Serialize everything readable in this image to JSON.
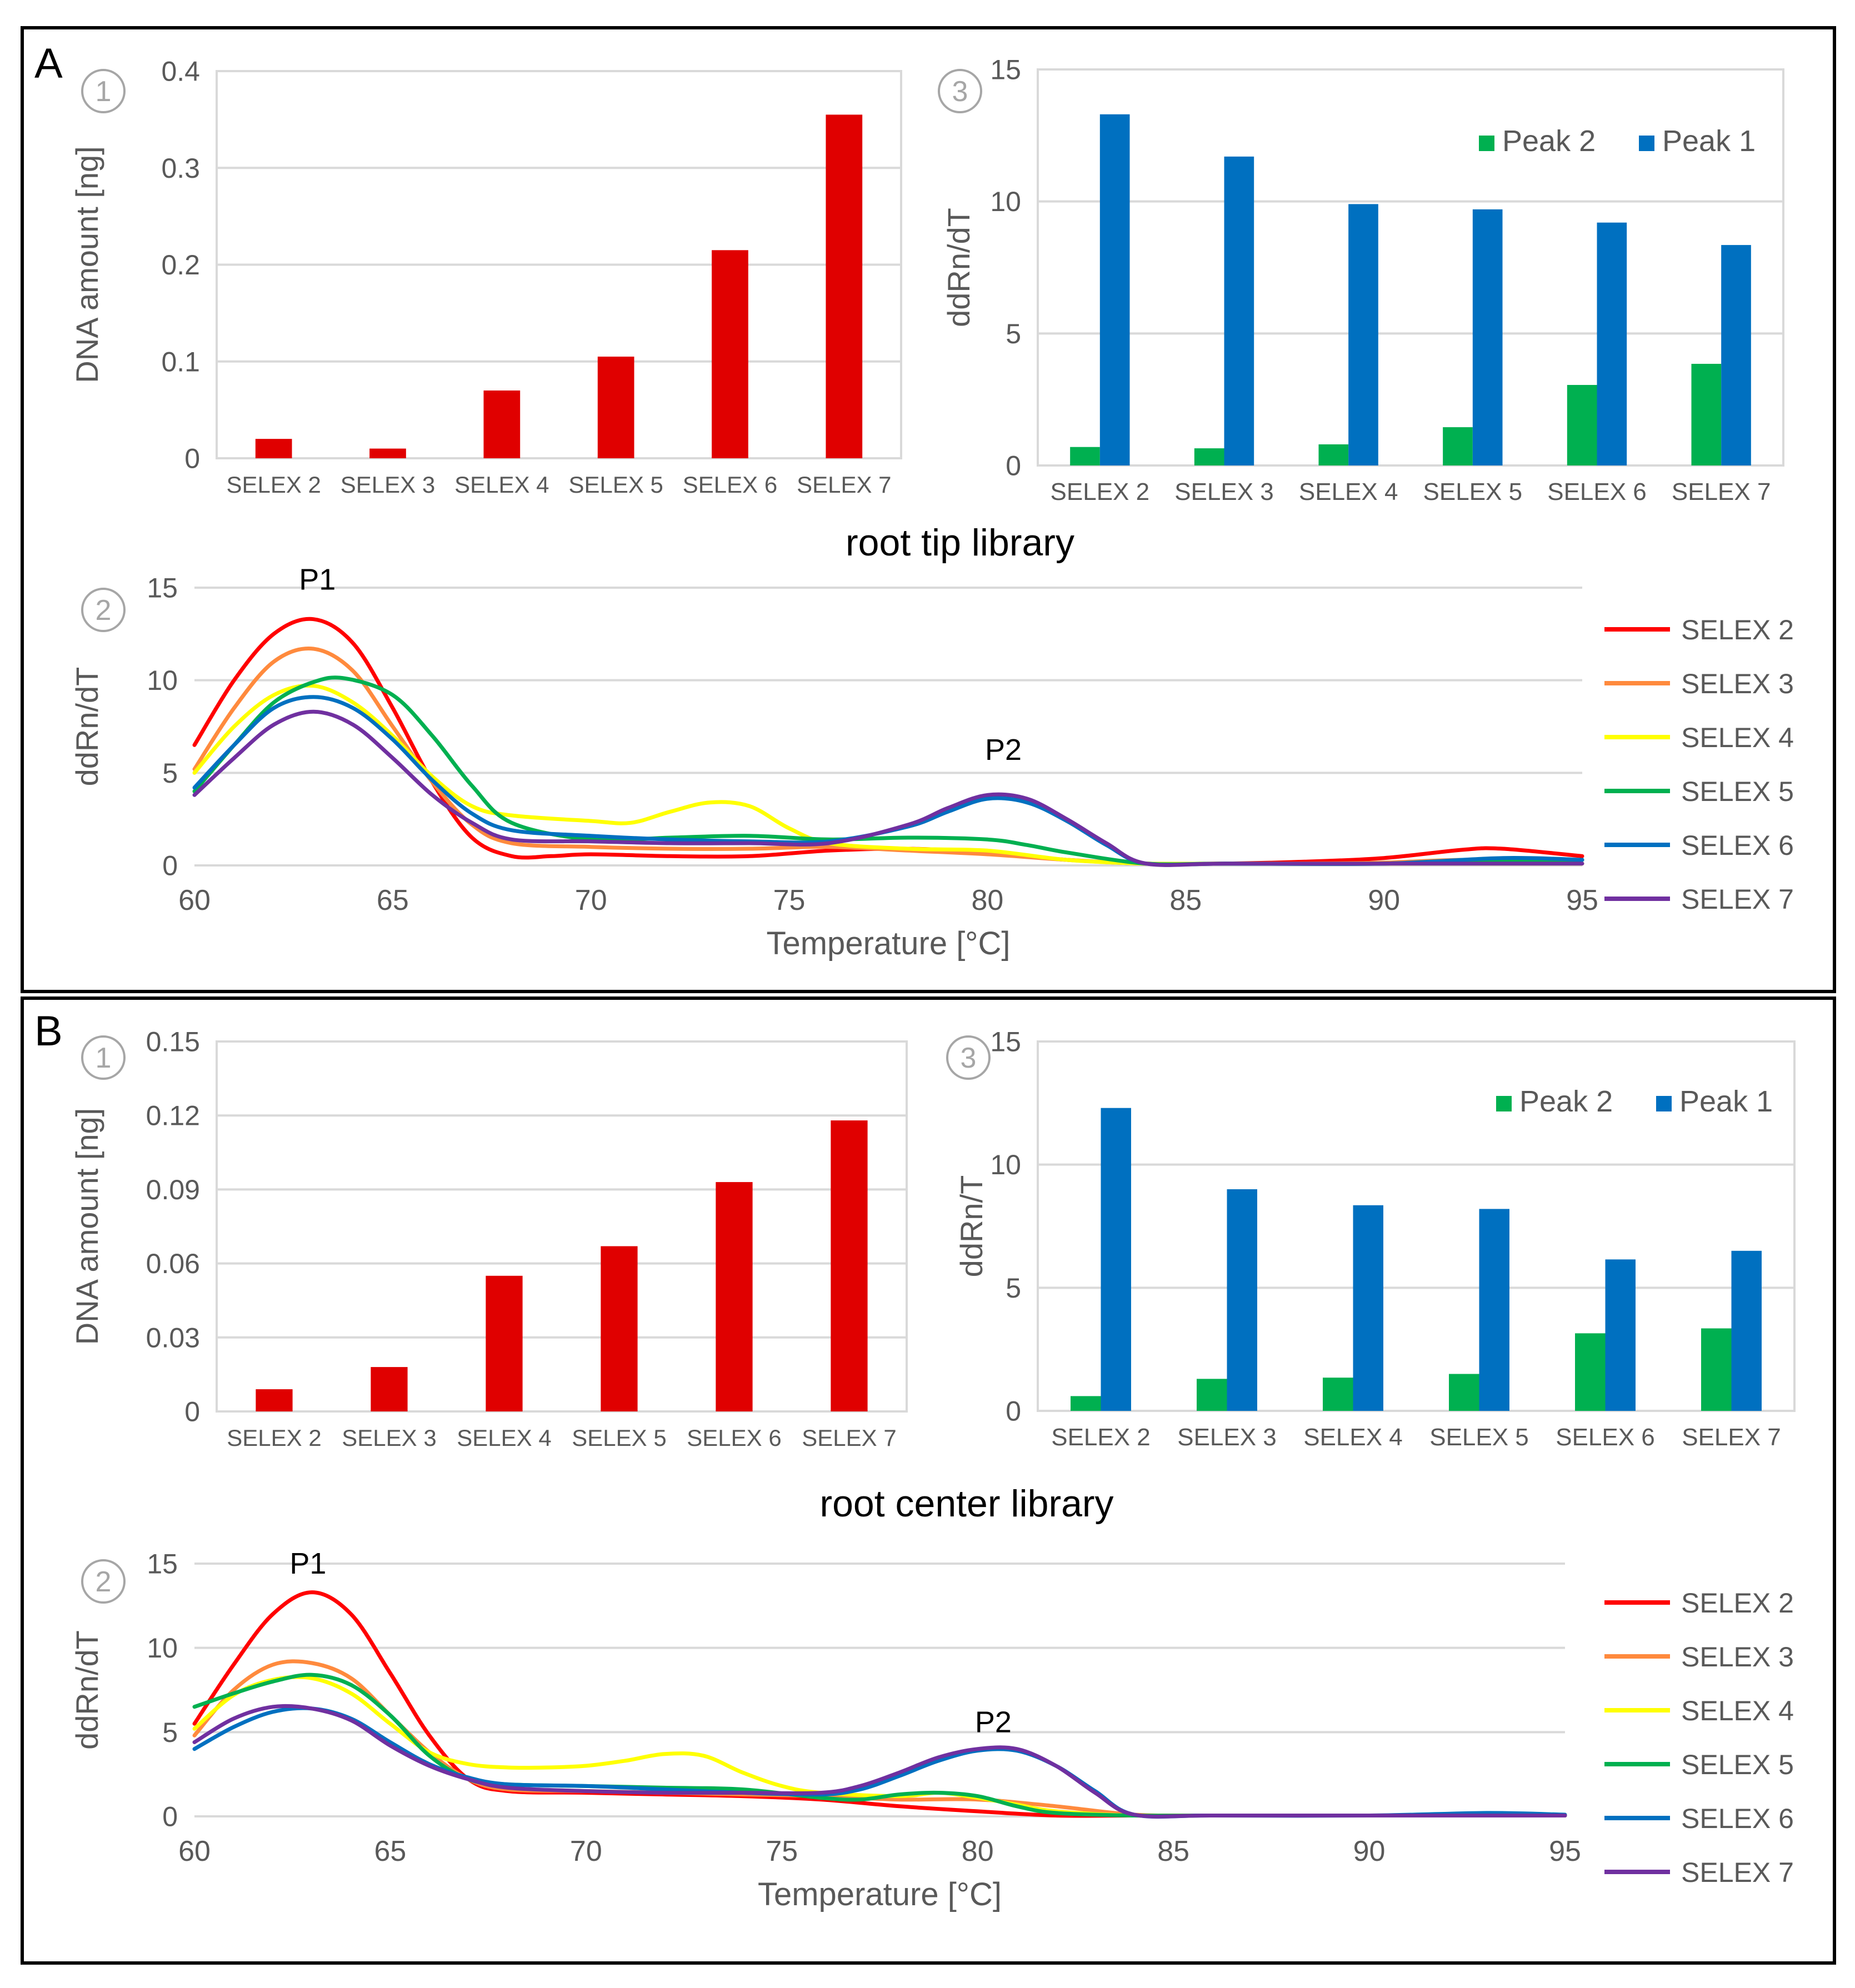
{
  "colors": {
    "red_bar": "#e00000",
    "peak2": "#00b050",
    "peak1": "#0070c0",
    "axis_text": "#595959",
    "grid": "#d9d9d9",
    "frame": "#000000",
    "series": [
      "#ff0000",
      "#ff8a3d",
      "#ffff00",
      "#00b050",
      "#0070c0",
      "#7030a0"
    ]
  },
  "panels": [
    {
      "panel_label": "A",
      "library_title": "root tip library",
      "circle_1": "1",
      "circle_2": "2",
      "circle_3": "3",
      "p1_label": "P1",
      "p2_label": "P2"
    },
    {
      "panel_label": "B",
      "library_title": "root center library",
      "circle_1": "1",
      "circle_2": "2",
      "circle_3": "3",
      "p1_label": "P1",
      "p2_label": "P2"
    }
  ],
  "chart_data": [
    {
      "id": "A1",
      "type": "bar",
      "title": "",
      "ylabel": "DNA amount [ng]",
      "xlabel": "",
      "categories": [
        "SELEX 2",
        "SELEX 3",
        "SELEX 4",
        "SELEX 5",
        "SELEX 6",
        "SELEX 7"
      ],
      "values": [
        0.02,
        0.01,
        0.07,
        0.105,
        0.215,
        0.355
      ],
      "ylim": [
        0,
        0.4
      ],
      "yticks": [
        "0",
        "0.1",
        "0.2",
        "0.3",
        "0.4"
      ],
      "grid": true
    },
    {
      "id": "A3",
      "type": "bar",
      "title": "",
      "ylabel": "ddRn/dT",
      "xlabel": "",
      "categories": [
        "SELEX 2",
        "SELEX 3",
        "SELEX 4",
        "SELEX 5",
        "SELEX 6",
        "SELEX 7"
      ],
      "series": [
        {
          "name": "Peak 2",
          "values": [
            0.7,
            0.65,
            0.8,
            1.45,
            3.05,
            3.85
          ]
        },
        {
          "name": "Peak 1",
          "values": [
            13.3,
            11.7,
            9.9,
            9.7,
            9.2,
            8.35
          ]
        }
      ],
      "ylim": [
        0,
        15
      ],
      "yticks": [
        "0",
        "5",
        "10",
        "15"
      ],
      "legend": "top-right",
      "grid": true
    },
    {
      "id": "A2",
      "type": "line",
      "title": "",
      "ylabel": "ddRn/dT",
      "xlabel": "Temperature [°C]",
      "xlim": [
        60,
        95
      ],
      "ylim": [
        0,
        15
      ],
      "xticks": [
        "60",
        "65",
        "70",
        "75",
        "80",
        "85",
        "90",
        "95"
      ],
      "yticks": [
        "0",
        "5",
        "10",
        "15"
      ],
      "legend": "right",
      "grid": true,
      "series": [
        {
          "name": "SELEX 2",
          "x": [
            60,
            61,
            62,
            63,
            64,
            65,
            66,
            67,
            68,
            69,
            70,
            72,
            74,
            76,
            78,
            80,
            82,
            84,
            86,
            88,
            90,
            92,
            93,
            95
          ],
          "y": [
            6.5,
            10,
            12.5,
            13.3,
            12,
            8.5,
            4.5,
            1.5,
            0.5,
            0.5,
            0.6,
            0.5,
            0.5,
            0.8,
            0.9,
            0.7,
            0.3,
            0.1,
            0.1,
            0.2,
            0.4,
            0.85,
            0.9,
            0.5
          ]
        },
        {
          "name": "SELEX 3",
          "x": [
            60,
            61,
            62,
            63,
            64,
            65,
            66,
            67,
            68,
            70,
            72,
            74,
            76,
            78,
            80,
            82,
            84,
            86,
            88,
            90,
            92,
            95
          ],
          "y": [
            5.2,
            8.5,
            11,
            11.7,
            10.5,
            7.5,
            4.5,
            2.2,
            1.2,
            1.0,
            0.9,
            0.9,
            1.0,
            0.8,
            0.6,
            0.3,
            0.1,
            0.1,
            0.1,
            0.15,
            0.3,
            0.3
          ]
        },
        {
          "name": "SELEX 4",
          "x": [
            60,
            61,
            62,
            63,
            64,
            65,
            66,
            67,
            68,
            70,
            71,
            72,
            73,
            74,
            75,
            76,
            78,
            80,
            82,
            84,
            86,
            90,
            95
          ],
          "y": [
            5,
            7.5,
            9.2,
            9.7,
            8.8,
            7,
            4.8,
            3.2,
            2.7,
            2.4,
            2.3,
            2.9,
            3.4,
            3.2,
            2.0,
            1.2,
            0.9,
            0.8,
            0.3,
            0.1,
            0.1,
            0.1,
            0.1
          ]
        },
        {
          "name": "SELEX 5",
          "x": [
            60,
            61,
            62,
            63,
            63.8,
            65,
            66,
            67,
            68,
            70,
            72,
            74,
            76,
            78,
            80,
            81,
            82,
            84,
            86,
            90,
            95
          ],
          "y": [
            4,
            6.5,
            8.8,
            9.9,
            10.1,
            9.2,
            7,
            4.3,
            2.3,
            1.4,
            1.5,
            1.6,
            1.4,
            1.5,
            1.4,
            1.1,
            0.7,
            0.1,
            0.1,
            0.1,
            0.3
          ]
        },
        {
          "name": "SELEX 6",
          "x": [
            60,
            61,
            62,
            63,
            64,
            65,
            66,
            67,
            68,
            70,
            72,
            74,
            76,
            78,
            79,
            80,
            81,
            82,
            83,
            84,
            86,
            90,
            93,
            95
          ],
          "y": [
            4.2,
            6.5,
            8.5,
            9.1,
            8.5,
            6.8,
            4.6,
            2.8,
            1.9,
            1.6,
            1.4,
            1.3,
            1.3,
            2.1,
            2.9,
            3.6,
            3.4,
            2.4,
            1.1,
            0.1,
            0.1,
            0.1,
            0.4,
            0.3
          ]
        },
        {
          "name": "SELEX 7",
          "x": [
            60,
            61,
            62,
            63,
            64,
            65,
            66,
            67,
            68,
            70,
            72,
            74,
            76,
            78,
            79,
            80,
            81,
            82,
            83,
            84,
            86,
            90,
            95
          ],
          "y": [
            3.8,
            5.8,
            7.6,
            8.3,
            7.6,
            5.8,
            3.8,
            2.3,
            1.4,
            1.3,
            1.2,
            1.2,
            1.2,
            2.2,
            3.1,
            3.8,
            3.6,
            2.5,
            1.2,
            0.1,
            0.1,
            0.1,
            0.1
          ]
        }
      ]
    },
    {
      "id": "B1",
      "type": "bar",
      "title": "",
      "ylabel": "DNA amount [ng]",
      "xlabel": "",
      "categories": [
        "SELEX 2",
        "SELEX 3",
        "SELEX 4",
        "SELEX 5",
        "SELEX 6",
        "SELEX 7"
      ],
      "values": [
        0.009,
        0.018,
        0.055,
        0.067,
        0.093,
        0.118
      ],
      "ylim": [
        0,
        0.15
      ],
      "yticks": [
        "0",
        "0.03",
        "0.06",
        "0.09",
        "0.12",
        "0.15"
      ],
      "grid": true
    },
    {
      "id": "B3",
      "type": "bar",
      "title": "",
      "ylabel": "ddRn/T",
      "xlabel": "",
      "categories": [
        "SELEX 2",
        "SELEX 3",
        "SELEX 4",
        "SELEX 5",
        "SELEX 6",
        "SELEX 7"
      ],
      "series": [
        {
          "name": "Peak 2",
          "values": [
            0.6,
            1.3,
            1.35,
            1.5,
            3.15,
            3.35
          ]
        },
        {
          "name": "Peak 1",
          "values": [
            12.3,
            9.0,
            8.35,
            8.2,
            6.15,
            6.5
          ]
        }
      ],
      "ylim": [
        0,
        15
      ],
      "yticks": [
        "0",
        "5",
        "10",
        "15"
      ],
      "legend": "top-right",
      "grid": true
    },
    {
      "id": "B2",
      "type": "line",
      "title": "",
      "ylabel": "ddRn/dT",
      "xlabel": "Temperature [°C]",
      "xlim": [
        60,
        95
      ],
      "ylim": [
        0,
        15
      ],
      "xticks": [
        "60",
        "65",
        "70",
        "75",
        "80",
        "85",
        "90",
        "95"
      ],
      "yticks": [
        "0",
        "5",
        "10",
        "15"
      ],
      "legend": "right",
      "grid": true,
      "series": [
        {
          "name": "SELEX 2",
          "x": [
            60,
            61,
            62,
            63,
            64,
            65,
            66,
            67,
            68,
            70,
            72,
            74,
            76,
            78,
            80,
            82,
            84,
            86,
            90,
            95
          ],
          "y": [
            5.5,
            9,
            12,
            13.3,
            12,
            8.5,
            4.8,
            2.2,
            1.5,
            1.4,
            1.3,
            1.2,
            1.0,
            0.6,
            0.3,
            0.05,
            0.05,
            0.05,
            0.05,
            0.05
          ]
        },
        {
          "name": "SELEX 3",
          "x": [
            60,
            61,
            62,
            63,
            64,
            65,
            66,
            67,
            68,
            70,
            72,
            74,
            76,
            78,
            80,
            82,
            84,
            86,
            90,
            95
          ],
          "y": [
            4.8,
            7.5,
            9,
            9.1,
            8.2,
            6,
            3.8,
            2.2,
            1.6,
            1.5,
            1.4,
            1.3,
            1.2,
            1.0,
            1.0,
            0.6,
            0.1,
            0.05,
            0.05,
            0.05
          ]
        },
        {
          "name": "SELEX 4",
          "x": [
            60,
            61,
            62,
            63,
            64,
            65,
            66,
            67,
            68,
            69,
            70,
            71,
            72,
            73,
            74,
            75,
            76,
            78,
            79,
            80,
            81,
            82,
            84,
            86,
            90,
            95
          ],
          "y": [
            5.2,
            7.2,
            8.1,
            8.2,
            7.3,
            5.5,
            3.8,
            3.1,
            2.9,
            2.9,
            3.0,
            3.3,
            3.7,
            3.6,
            2.6,
            1.8,
            1.4,
            1.2,
            1.4,
            1.1,
            0.7,
            0.3,
            0.05,
            0.05,
            0.05,
            0.1
          ]
        },
        {
          "name": "SELEX 5",
          "x": [
            60,
            61,
            62,
            63,
            64,
            65,
            66,
            67,
            68,
            70,
            72,
            74,
            76,
            77,
            78,
            79,
            80,
            81,
            82,
            84,
            86,
            90,
            95
          ],
          "y": [
            6.5,
            7.3,
            8.0,
            8.4,
            7.8,
            6.0,
            3.6,
            2.2,
            1.9,
            1.8,
            1.7,
            1.6,
            1.1,
            1.0,
            1.3,
            1.4,
            1.2,
            0.6,
            0.2,
            0.05,
            0.05,
            0.05,
            0.05
          ]
        },
        {
          "name": "SELEX 6",
          "x": [
            60,
            61,
            62,
            63,
            64,
            65,
            66,
            67,
            68,
            70,
            72,
            74,
            76,
            77,
            78,
            79,
            80,
            81,
            82,
            83,
            84,
            86,
            90,
            93,
            95
          ],
          "y": [
            4.0,
            5.3,
            6.2,
            6.4,
            5.8,
            4.4,
            3.1,
            2.3,
            1.9,
            1.8,
            1.6,
            1.4,
            1.3,
            1.6,
            2.4,
            3.3,
            3.9,
            3.9,
            3.0,
            1.5,
            0.1,
            0.05,
            0.05,
            0.2,
            0.1
          ]
        },
        {
          "name": "SELEX 7",
          "x": [
            60,
            61,
            62,
            63,
            64,
            65,
            66,
            67,
            68,
            70,
            72,
            74,
            76,
            77,
            78,
            79,
            80,
            81,
            82,
            83,
            84,
            86,
            90,
            95
          ],
          "y": [
            4.4,
            5.8,
            6.5,
            6.4,
            5.7,
            4.2,
            3.0,
            2.2,
            1.7,
            1.5,
            1.4,
            1.4,
            1.4,
            1.8,
            2.6,
            3.5,
            4.0,
            4.0,
            3.0,
            1.4,
            0.1,
            0.05,
            0.05,
            0.05
          ]
        }
      ]
    }
  ]
}
